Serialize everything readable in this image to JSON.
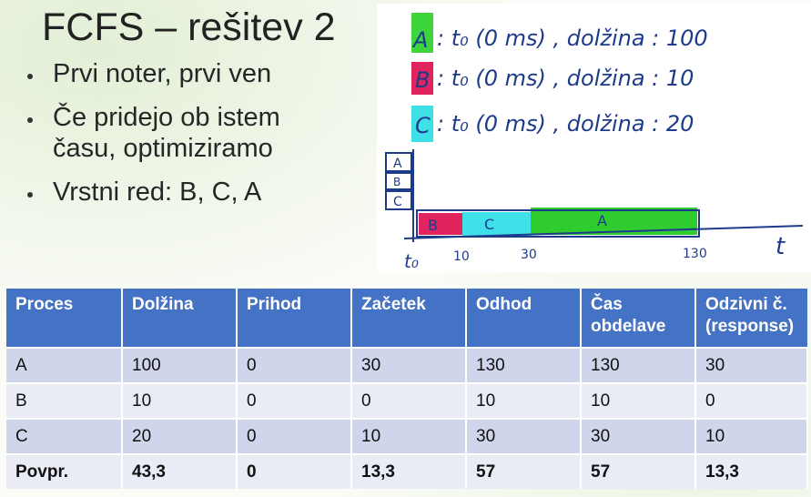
{
  "slide": {
    "title": "FCFS – rešitev 2",
    "bullets": [
      "Prvi noter, prvi ven",
      "Če pridejo ob istem času, optimiziramo",
      "Vrstni red: B, C, A"
    ]
  },
  "sketch": {
    "process_lines": [
      {
        "letter": "A",
        "text": ": t₀ (0 ms) , dolžina : 100",
        "color": "#3ed43e"
      },
      {
        "letter": "B",
        "text": ": t₀ (0 ms) , dolžina : 10",
        "color": "#e0245e"
      },
      {
        "letter": "C",
        "text": ": t₀ (0 ms) , dolžina : 20",
        "color": "#3fe0e8"
      }
    ],
    "queue_labels": [
      "A",
      "B",
      "C"
    ],
    "timeline": {
      "segments": [
        {
          "label": "B",
          "start": 0,
          "end": 10,
          "color": "#e0245e"
        },
        {
          "label": "C",
          "start": 10,
          "end": 30,
          "color": "#3fe0e8"
        },
        {
          "label": "A",
          "start": 30,
          "end": 130,
          "color": "#2ecc2e"
        }
      ],
      "ticks": [
        "t₀",
        "10",
        "30",
        "130"
      ],
      "axis_label": "t"
    }
  },
  "table": {
    "headers": [
      "Proces",
      "Dolžina",
      "Prihod",
      "Začetek",
      "Odhod",
      "Čas obdelave",
      "Odzivni č. (response)"
    ],
    "rows": [
      [
        "A",
        "100",
        "0",
        "30",
        "130",
        "130",
        "30"
      ],
      [
        "B",
        "10",
        "0",
        "0",
        "10",
        "10",
        "0"
      ],
      [
        "C",
        "20",
        "0",
        "10",
        "30",
        "30",
        "10"
      ],
      [
        "Povpr.",
        "43,3",
        "0",
        "13,3",
        "57",
        "57",
        "13,3"
      ]
    ]
  },
  "colors": {
    "header_bg": "#4472c4",
    "row_odd": "#cfd5ea",
    "row_even": "#e9ebf5",
    "ink": "#1d3b8a"
  }
}
